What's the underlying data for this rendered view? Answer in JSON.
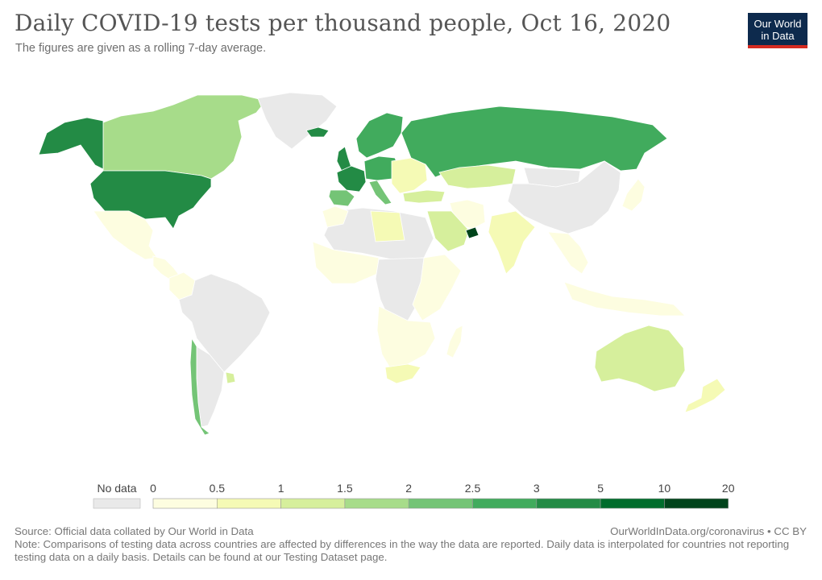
{
  "header": {
    "title": "Daily COVID-19 tests per thousand people, Oct 16, 2020",
    "subtitle": "The figures are given as a rolling 7-day average.",
    "logo_line1": "Our World",
    "logo_line2": "in Data"
  },
  "legend": {
    "no_data_label": "No data",
    "no_data_color": "#e9e9e9",
    "ticks": [
      "0",
      "0.5",
      "1",
      "1.5",
      "2",
      "2.5",
      "3",
      "5",
      "10",
      "20"
    ],
    "colors": [
      "#fdfde0",
      "#f5fab5",
      "#d6ef9c",
      "#a7dc8a",
      "#74c476",
      "#41ab5d",
      "#238b45",
      "#006d2c",
      "#00441b"
    ]
  },
  "map": {
    "ocean_color": "#ffffff",
    "border_color": "#ffffff",
    "countries": [
      {
        "name": "Canada",
        "color": "#a7dc8a"
      },
      {
        "name": "Alaska",
        "color": "#238b45"
      },
      {
        "name": "United States",
        "color": "#238b45"
      },
      {
        "name": "Greenland",
        "color": "#e9e9e9"
      },
      {
        "name": "Mexico",
        "color": "#fdfde0"
      },
      {
        "name": "Central America",
        "color": "#fdfde0"
      },
      {
        "name": "Colombia",
        "color": "#fdfde0"
      },
      {
        "name": "South America",
        "color": "#e9e9e9"
      },
      {
        "name": "Argentina",
        "color": "#e9e9e9"
      },
      {
        "name": "Chile",
        "color": "#74c476"
      },
      {
        "name": "Uruguay",
        "color": "#d6ef9c"
      },
      {
        "name": "Iceland",
        "color": "#238b45"
      },
      {
        "name": "United Kingdom",
        "color": "#238b45"
      },
      {
        "name": "France",
        "color": "#238b45"
      },
      {
        "name": "Spain",
        "color": "#74c476"
      },
      {
        "name": "Italy",
        "color": "#74c476"
      },
      {
        "name": "Scandinavia",
        "color": "#41ab5d"
      },
      {
        "name": "Central Europe",
        "color": "#41ab5d"
      },
      {
        "name": "Eastern Europe",
        "color": "#f5fab5"
      },
      {
        "name": "Russia",
        "color": "#41ab5d"
      },
      {
        "name": "Kazakhstan",
        "color": "#d6ef9c"
      },
      {
        "name": "Turkey",
        "color": "#d6ef9c"
      },
      {
        "name": "Saudi Arabia",
        "color": "#d6ef9c"
      },
      {
        "name": "Iran",
        "color": "#fdfde0"
      },
      {
        "name": "United Arab Emirates",
        "color": "#00441b"
      },
      {
        "name": "India",
        "color": "#f5fab5"
      },
      {
        "name": "China",
        "color": "#e9e9e9"
      },
      {
        "name": "Mongolia",
        "color": "#e9e9e9"
      },
      {
        "name": "Japan",
        "color": "#fdfde0"
      },
      {
        "name": "Southeast Asia",
        "color": "#fdfde0"
      },
      {
        "name": "Indonesia",
        "color": "#fdfde0"
      },
      {
        "name": "Australia",
        "color": "#d6ef9c"
      },
      {
        "name": "New Zealand",
        "color": "#f5fab5"
      },
      {
        "name": "North Africa",
        "color": "#e9e9e9"
      },
      {
        "name": "Libya",
        "color": "#f5fab5"
      },
      {
        "name": "Morocco",
        "color": "#fdfde0"
      },
      {
        "name": "West Africa",
        "color": "#fdfde0"
      },
      {
        "name": "Central Africa",
        "color": "#e9e9e9"
      },
      {
        "name": "East Africa",
        "color": "#fdfde0"
      },
      {
        "name": "Southern Africa",
        "color": "#fdfde0"
      },
      {
        "name": "South Africa",
        "color": "#f5fab5"
      },
      {
        "name": "Madagascar",
        "color": "#fdfde0"
      }
    ]
  },
  "footer": {
    "source": "Source: Official data collated by Our World in Data",
    "credit": "OurWorldInData.org/coronavirus • CC BY",
    "note": "Note: Comparisons of testing data across countries are affected by differences in the way the data are reported. Daily data is interpolated for countries not reporting testing data on a daily basis. Details can be found at our Testing Dataset page."
  }
}
